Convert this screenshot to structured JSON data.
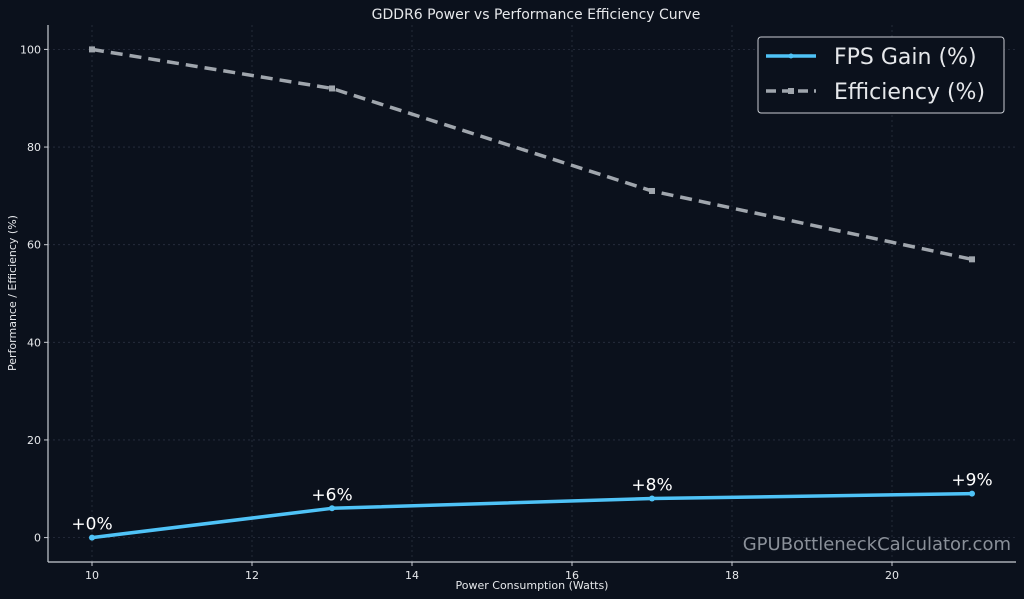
{
  "chart_data": {
    "type": "line",
    "title": "GDDR6 Power vs Performance Efficiency Curve",
    "xlabel": "Power Consumption (Watts)",
    "ylabel": "Performance / Efficiency (%)",
    "xlim": [
      9.45,
      21.55
    ],
    "ylim": [
      -5,
      105
    ],
    "xticks": [
      10,
      12,
      14,
      16,
      18,
      20
    ],
    "yticks": [
      0,
      20,
      40,
      60,
      80,
      100
    ],
    "grid": true,
    "legend_position": "top-right",
    "x": [
      10,
      13,
      17,
      21
    ],
    "series": [
      {
        "name": "FPS Gain (%)",
        "values": [
          0,
          6,
          8,
          9
        ],
        "color": "#4fc3f7",
        "style": "solid",
        "marker": "circle",
        "labels": [
          "+0%",
          "+6%",
          "+8%",
          "+9%"
        ]
      },
      {
        "name": "Efficiency (%)",
        "values": [
          100,
          92,
          71,
          57
        ],
        "color": "#a0a6ad",
        "style": "dashed",
        "marker": "square"
      }
    ],
    "watermark": "GPUBottleneckCalculator.com"
  },
  "colors": {
    "background": "#0b111c",
    "axis": "#c8ccd2",
    "grid": "#2a3140",
    "text": "#e6e8eb"
  }
}
